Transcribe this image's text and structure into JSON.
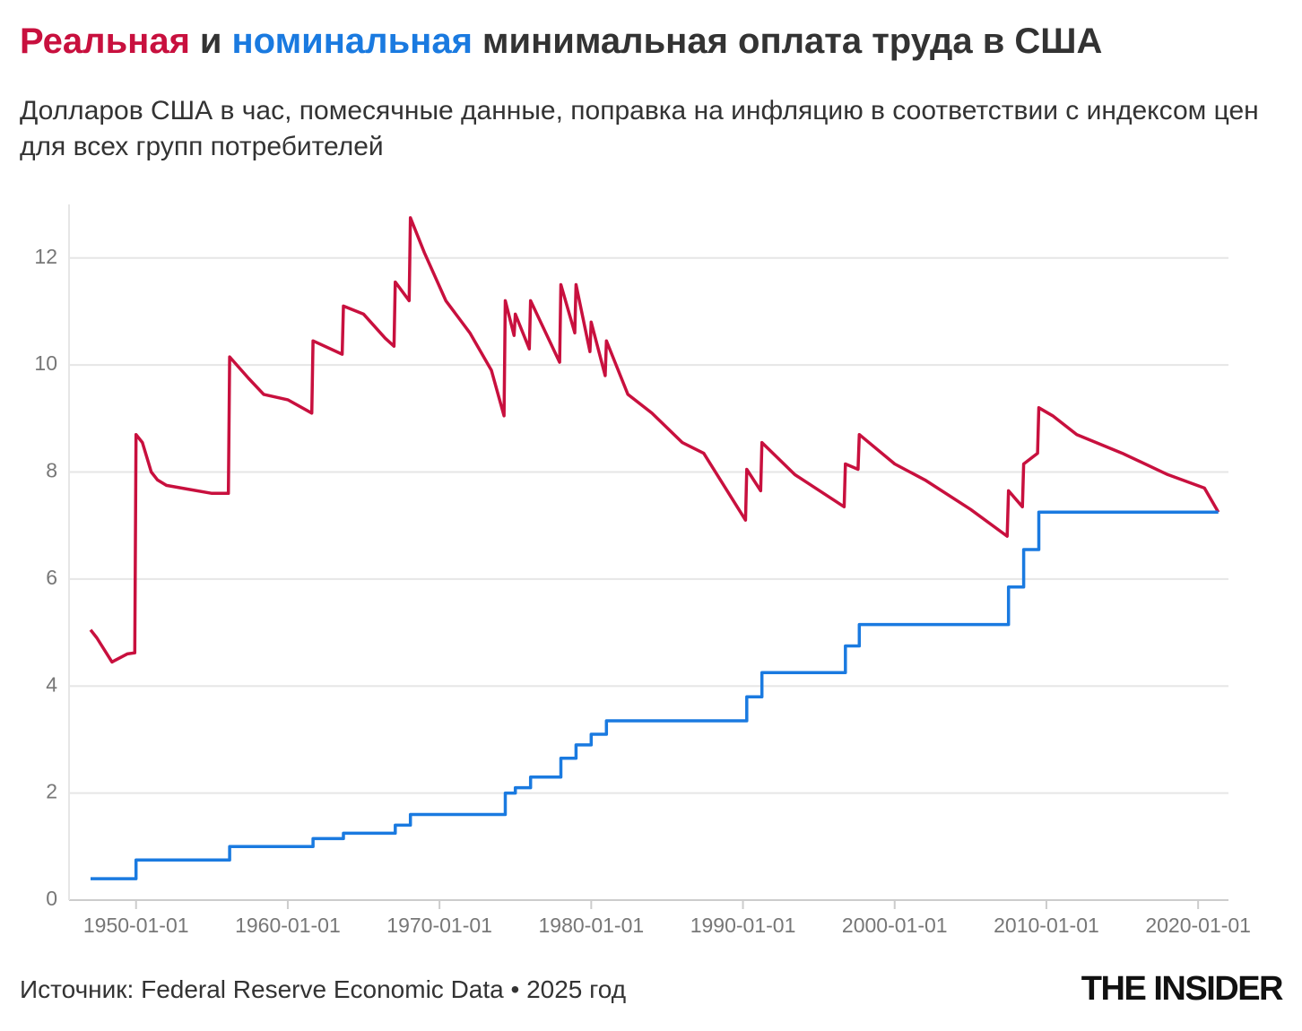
{
  "chart_data": {
    "type": "line",
    "title_parts": [
      {
        "text": "Реальная",
        "color": "#c8103e"
      },
      {
        "text": "и",
        "color": "#333333"
      },
      {
        "text": "номинальная",
        "color": "#1a7ae0"
      },
      {
        "text": "минимальная оплата труда в США",
        "color": "#333333"
      }
    ],
    "subtitle": "Долларов США в час, помесячные данные, поправка на инфляцию в соответствии с индексом цен для всех групп потребителей",
    "source": "Источник: Federal Reserve Economic Data • 2025 год",
    "logo": "THE INSIDER",
    "xlim": [
      "1945-08-01",
      "2022-01-01"
    ],
    "xticks": [
      "1950-01-01",
      "1960-01-01",
      "1970-01-01",
      "1980-01-01",
      "1990-01-01",
      "2000-01-01",
      "2010-01-01",
      "2020-01-01"
    ],
    "ylim": [
      0,
      13
    ],
    "yticks": [
      0,
      2,
      4,
      6,
      8,
      10,
      12
    ],
    "grid": true,
    "series": [
      {
        "name": "Реальная",
        "color": "#c8103e",
        "x": [
          "1947-01-01",
          "1947-06-01",
          "1948-06-01",
          "1949-06-01",
          "1949-12-01",
          "1950-01-01",
          "1950-06-01",
          "1951-01-01",
          "1951-06-01",
          "1952-01-01",
          "1953-06-01",
          "1955-01-01",
          "1956-02-01",
          "1956-03-01",
          "1957-06-01",
          "1958-06-01",
          "1960-01-01",
          "1961-08-01",
          "1961-09-01",
          "1963-08-01",
          "1963-09-01",
          "1965-01-01",
          "1966-06-01",
          "1967-01-01",
          "1967-02-01",
          "1968-01-01",
          "1968-02-01",
          "1969-01-01",
          "1970-06-01",
          "1972-01-01",
          "1973-06-01",
          "1974-04-01",
          "1974-05-01",
          "1974-12-01",
          "1975-01-01",
          "1975-12-01",
          "1976-01-01",
          "1977-12-01",
          "1978-01-01",
          "1978-12-01",
          "1979-01-01",
          "1979-12-01",
          "1980-01-01",
          "1980-12-01",
          "1981-01-01",
          "1982-06-01",
          "1984-01-01",
          "1986-01-01",
          "1987-06-01",
          "1990-03-01",
          "1990-04-01",
          "1991-03-01",
          "1991-04-01",
          "1993-06-01",
          "1996-09-01",
          "1996-10-01",
          "1997-08-01",
          "1997-09-01",
          "2000-01-01",
          "2002-01-01",
          "2005-01-01",
          "2007-06-01",
          "2007-07-01",
          "2008-06-01",
          "2008-07-01",
          "2009-06-01",
          "2009-07-01",
          "2010-06-01",
          "2012-01-01",
          "2015-01-01",
          "2018-01-01",
          "2020-06-01",
          "2021-05-01"
        ],
        "values": [
          5.05,
          4.9,
          4.45,
          4.6,
          4.62,
          8.7,
          8.55,
          8.0,
          7.85,
          7.75,
          7.68,
          7.6,
          7.6,
          10.15,
          9.75,
          9.45,
          9.35,
          9.1,
          10.45,
          10.2,
          11.1,
          10.95,
          10.5,
          10.35,
          11.55,
          11.2,
          12.75,
          12.1,
          11.2,
          10.6,
          9.9,
          9.05,
          11.2,
          10.55,
          10.95,
          10.3,
          11.2,
          10.05,
          11.5,
          10.6,
          11.5,
          10.25,
          10.8,
          9.8,
          10.45,
          9.45,
          9.1,
          8.55,
          8.35,
          7.1,
          8.05,
          7.65,
          8.55,
          7.95,
          7.35,
          8.15,
          8.05,
          8.7,
          8.15,
          7.85,
          7.3,
          6.8,
          7.65,
          7.35,
          8.15,
          8.35,
          9.2,
          9.05,
          8.7,
          8.35,
          7.95,
          7.7,
          7.25
        ]
      },
      {
        "name": "Номинальная",
        "color": "#1a7ae0",
        "x": [
          "1947-01-01",
          "1950-01-01",
          "1950-01-01",
          "1956-03-01",
          "1956-03-01",
          "1961-09-01",
          "1961-09-01",
          "1963-09-01",
          "1963-09-01",
          "1967-02-01",
          "1967-02-01",
          "1968-02-01",
          "1968-02-01",
          "1974-05-01",
          "1974-05-01",
          "1975-01-01",
          "1975-01-01",
          "1976-01-01",
          "1976-01-01",
          "1978-01-01",
          "1978-01-01",
          "1979-01-01",
          "1979-01-01",
          "1980-01-01",
          "1980-01-01",
          "1981-01-01",
          "1981-01-01",
          "1990-04-01",
          "1990-04-01",
          "1991-04-01",
          "1991-04-01",
          "1996-10-01",
          "1996-10-01",
          "1997-09-01",
          "1997-09-01",
          "2007-07-01",
          "2007-07-01",
          "2008-07-01",
          "2008-07-01",
          "2009-07-01",
          "2009-07-01",
          "2021-05-01"
        ],
        "values": [
          0.4,
          0.4,
          0.75,
          0.75,
          1.0,
          1.0,
          1.15,
          1.15,
          1.25,
          1.25,
          1.4,
          1.4,
          1.6,
          1.6,
          2.0,
          2.0,
          2.1,
          2.1,
          2.3,
          2.3,
          2.65,
          2.65,
          2.9,
          2.9,
          3.1,
          3.1,
          3.35,
          3.35,
          3.8,
          3.8,
          4.25,
          4.25,
          4.75,
          4.75,
          5.15,
          5.15,
          5.85,
          5.85,
          6.55,
          6.55,
          7.25,
          7.25
        ]
      }
    ]
  }
}
